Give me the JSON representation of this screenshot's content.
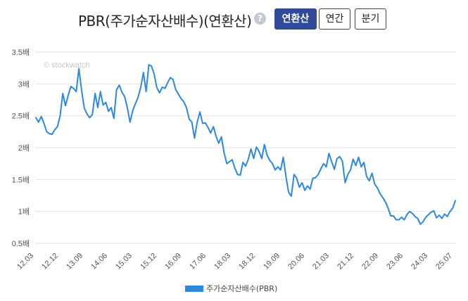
{
  "header": {
    "title": "PBR(주가순자산배수)(연환산)",
    "help_icon": "?",
    "buttons": [
      {
        "label": "연환산",
        "active": true
      },
      {
        "label": "연간",
        "active": false
      },
      {
        "label": "분기",
        "active": false
      }
    ]
  },
  "watermark": "© stockwatch",
  "colors": {
    "line": "#2d88e0",
    "accent": "#2f4a98",
    "grid": "#e6e6e6"
  },
  "chart_data": {
    "type": "line",
    "title": "",
    "xlabel": "",
    "ylabel": "",
    "ylim": [
      0.5,
      3.5
    ],
    "yticks": [
      "0.5배",
      "1배",
      "1.5배",
      "2배",
      "2.5배",
      "3배",
      "3.5배"
    ],
    "ytick_values": [
      0.5,
      1,
      1.5,
      2,
      2.5,
      3,
      3.5
    ],
    "xticks": [
      "12.03",
      "12.12",
      "13.09",
      "14.06",
      "15.03",
      "15.12",
      "16.09",
      "17.06",
      "18.03",
      "18.12",
      "19.09",
      "20.06",
      "21.03",
      "21.12",
      "22.09",
      "23.06",
      "24.03",
      "25.07"
    ],
    "grid": "horizontal",
    "legend_position": "bottom",
    "series": [
      {
        "name": "주가순자산배수(PBR)",
        "x_start": "2012.03",
        "x_end": "2025.07",
        "values": [
          2.47,
          2.4,
          2.49,
          2.38,
          2.25,
          2.22,
          2.21,
          2.28,
          2.33,
          2.5,
          2.85,
          2.66,
          2.82,
          2.96,
          2.93,
          2.88,
          3.24,
          2.9,
          2.62,
          2.53,
          2.47,
          2.52,
          2.85,
          2.63,
          2.88,
          2.67,
          2.71,
          2.57,
          2.63,
          2.46,
          2.91,
          2.98,
          2.87,
          2.8,
          2.63,
          2.4,
          2.58,
          2.69,
          2.79,
          2.95,
          3.18,
          2.88,
          3.3,
          3.28,
          3.15,
          2.94,
          2.86,
          2.95,
          2.93,
          3.02,
          3.1,
          3.07,
          2.91,
          2.84,
          2.77,
          2.72,
          2.63,
          2.45,
          2.4,
          2.15,
          2.4,
          2.56,
          2.38,
          2.39,
          2.32,
          2.23,
          2.33,
          2.18,
          2.07,
          2.17,
          1.92,
          1.75,
          1.78,
          1.81,
          1.68,
          1.58,
          1.57,
          1.77,
          1.71,
          1.82,
          1.98,
          1.83,
          2.01,
          1.94,
          1.83,
          2.05,
          1.88,
          1.8,
          1.75,
          1.65,
          1.7,
          1.65,
          1.85,
          1.55,
          1.3,
          1.24,
          1.58,
          1.52,
          1.38,
          1.45,
          1.33,
          1.4,
          1.35,
          1.52,
          1.53,
          1.58,
          1.67,
          1.75,
          1.7,
          1.91,
          1.78,
          1.66,
          1.83,
          1.86,
          1.79,
          1.45,
          1.58,
          1.65,
          1.82,
          1.72,
          1.85,
          1.7,
          1.77,
          1.55,
          1.48,
          1.6,
          1.43,
          1.37,
          1.28,
          1.22,
          1.15,
          1.05,
          0.93,
          0.93,
          0.87,
          0.87,
          0.91,
          0.87,
          0.95,
          1.0,
          0.97,
          0.92,
          0.89,
          0.8,
          0.84,
          0.91,
          0.95,
          0.99,
          1.01,
          0.9,
          0.94,
          0.89,
          0.96,
          0.92,
          1.0,
          1.05,
          1.17
        ]
      }
    ]
  }
}
